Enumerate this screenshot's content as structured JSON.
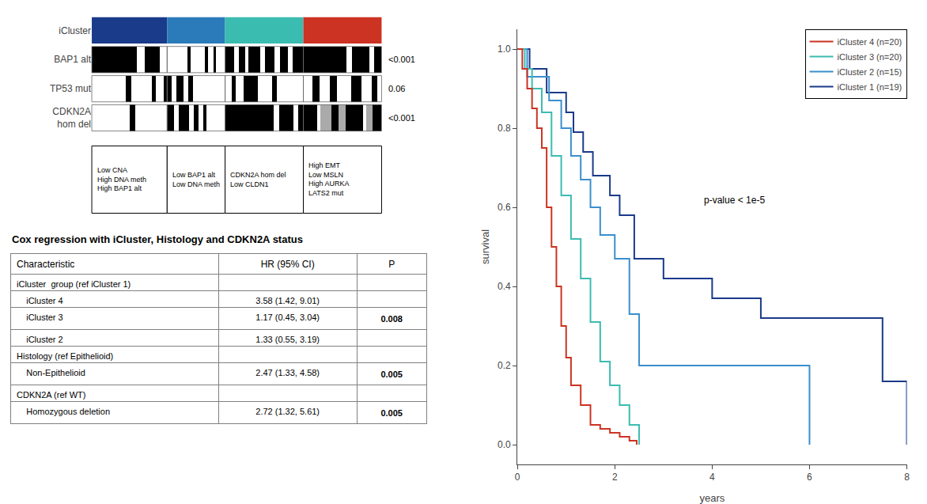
{
  "chart_data": [
    {
      "type": "heatmap",
      "categories": [
        "iCluster",
        "BAP1 alt",
        "TP53 mut",
        "CDKN2A\nhom del"
      ],
      "widths": [
        0.26,
        0.2,
        0.27,
        0.27
      ],
      "colors": [
        "#1a3a8a",
        "#2b7bba",
        "#3bbcb0",
        "#cc3322"
      ],
      "cells": [
        [
          [
            {
              "color": "black",
              "value": 0.6
            },
            {
              "color": "white",
              "value": 0.1
            },
            {
              "color": "black",
              "value": 0.2
            },
            {
              "color": "white",
              "value": 0.1
            }
          ],
          [
            {
              "color": "white",
              "value": 0.35
            },
            {
              "color": "black",
              "value": 0.05
            },
            {
              "color": "white",
              "value": 0.25
            },
            {
              "color": "black",
              "value": 0.05
            },
            {
              "color": "white",
              "value": 0.1
            },
            {
              "color": "black",
              "value": 0.04
            },
            {
              "color": "white",
              "value": 0.16
            }
          ],
          [
            {
              "color": "black",
              "value": 0.12
            },
            {
              "color": "white",
              "value": 0.06
            },
            {
              "color": "black",
              "value": 0.08
            },
            {
              "color": "white",
              "value": 0.04
            },
            {
              "color": "black",
              "value": 0.15
            },
            {
              "color": "white",
              "value": 0.06
            },
            {
              "color": "black",
              "value": 0.12
            },
            {
              "color": "white",
              "value": 0.07
            },
            {
              "color": "black",
              "value": 0.1
            },
            {
              "color": "white",
              "value": 0.06
            },
            {
              "color": "black",
              "value": 0.14
            }
          ],
          [
            {
              "color": "black",
              "value": 0.55
            },
            {
              "color": "white",
              "value": 0.07
            },
            {
              "color": "black",
              "value": 0.22
            },
            {
              "color": "white",
              "value": 0.06
            },
            {
              "color": "black",
              "value": 0.1
            }
          ]
        ],
        [
          [
            {
              "color": "white",
              "value": 0.45
            },
            {
              "color": "black",
              "value": 0.07
            },
            {
              "color": "white",
              "value": 0.28
            },
            {
              "color": "black",
              "value": 0.05
            },
            {
              "color": "white",
              "value": 0.1
            },
            {
              "color": "black",
              "value": 0.05
            }
          ],
          [
            {
              "color": "black",
              "value": 0.08
            },
            {
              "color": "white",
              "value": 0.08
            },
            {
              "color": "black",
              "value": 0.12
            },
            {
              "color": "white",
              "value": 0.08
            },
            {
              "color": "black",
              "value": 0.08
            },
            {
              "color": "white",
              "value": 0.56
            }
          ],
          [
            {
              "color": "white",
              "value": 0.08
            },
            {
              "color": "black",
              "value": 0.06
            },
            {
              "color": "white",
              "value": 0.1
            },
            {
              "color": "black",
              "value": 0.18
            },
            {
              "color": "white",
              "value": 0.18
            },
            {
              "color": "black",
              "value": 0.06
            },
            {
              "color": "white",
              "value": 0.34
            }
          ],
          [
            {
              "color": "white",
              "value": 0.12
            },
            {
              "color": "black",
              "value": 0.09
            },
            {
              "color": "white",
              "value": 0.13
            },
            {
              "color": "black",
              "value": 0.09
            },
            {
              "color": "white",
              "value": 0.18
            },
            {
              "color": "black",
              "value": 0.13
            },
            {
              "color": "white",
              "value": 0.13
            },
            {
              "color": "black",
              "value": 0.07
            },
            {
              "color": "white",
              "value": 0.06
            }
          ]
        ],
        [
          [
            {
              "color": "white",
              "value": 0.5
            },
            {
              "color": "black",
              "value": 0.08
            },
            {
              "color": "white",
              "value": 0.42
            }
          ],
          [
            {
              "color": "black",
              "value": 0.12
            },
            {
              "color": "white",
              "value": 0.08
            },
            {
              "color": "black",
              "value": 0.18
            },
            {
              "color": "white",
              "value": 0.08
            },
            {
              "color": "black",
              "value": 0.08
            },
            {
              "color": "white",
              "value": 0.08
            },
            {
              "color": "black",
              "value": 0.06
            },
            {
              "color": "white",
              "value": 0.32
            }
          ],
          [
            {
              "color": "black",
              "value": 0.62
            },
            {
              "color": "white",
              "value": 0.07
            },
            {
              "color": "black",
              "value": 0.18
            },
            {
              "color": "white",
              "value": 0.06
            },
            {
              "color": "black",
              "value": 0.07
            }
          ],
          [
            {
              "color": "black",
              "value": 0.18
            },
            {
              "color": "white",
              "value": 0.04
            },
            {
              "color": "#aaaaaa",
              "value": 0.14
            },
            {
              "color": "black",
              "value": 0.09
            },
            {
              "color": "#aaaaaa",
              "value": 0.09
            },
            {
              "color": "black",
              "value": 0.22
            },
            {
              "color": "white",
              "value": 0.04
            },
            {
              "color": "#aaaaaa",
              "value": 0.08
            },
            {
              "color": "black",
              "value": 0.12
            }
          ]
        ]
      ],
      "p_values": [
        null,
        "<0.001",
        "0.06",
        "<0.001"
      ],
      "annotations": [
        [
          "Low CNA",
          "High DNA meth",
          "High BAP1 alt"
        ],
        [
          "Low BAP1 alt",
          "Low DNA meth"
        ],
        [
          "CDKN2A hom del",
          "Low CLDN1"
        ],
        [
          "High EMT",
          "Low MSLN",
          "High AURKA",
          "LATS2 mut"
        ]
      ],
      "xlim": [
        0,
        1
      ],
      "tick_labels": "y",
      "grid": false
    },
    {
      "type": "table",
      "title": "Cox regression with iCluster, Histology and CDKN2A status",
      "headers": [
        "Characteristic",
        "HR (95% CI)",
        "P"
      ],
      "rows": [
        [
          "iCluster  group (ref iCluster 1)",
          null,
          null
        ],
        [
          "    iCluster 4",
          "3.58 (1.42, 9.01)",
          null
        ],
        [
          "    iCluster 3",
          "1.17 (0.45, 3.04)",
          "0.008"
        ],
        [
          "    iCluster 2",
          "1.33 (0.55, 3.19)",
          null
        ],
        [
          "Histology (ref Epithelioid)",
          null,
          null
        ],
        [
          "    Non-Epithelioid",
          "2.47 (1.33, 4.58)",
          "0.005"
        ],
        [
          "CDKN2A (ref WT)",
          null,
          null
        ],
        [
          "    Homozygous deletion",
          "2.72 (1.32, 5.61)",
          "0.005"
        ]
      ],
      "bold_values": [
        "0.008",
        "0.005"
      ]
    },
    {
      "type": "line",
      "line_style": "step",
      "xlabel": "years",
      "ylabel": "survival",
      "xlim": [
        0,
        8
      ],
      "ylim": [
        -0.05,
        1.05
      ],
      "xticks": [
        0,
        2,
        4,
        6,
        8
      ],
      "yticks": [
        {
          "value": 0.0,
          "label": "0.0"
        },
        0.2,
        0.4,
        0.6,
        0.8,
        {
          "value": 1.0,
          "label": "1.0"
        }
      ],
      "grid": false,
      "legend": "upper right",
      "annotations": [
        {
          "text": "p-value < 1e-5",
          "x": 3.8,
          "y": 0.6
        }
      ],
      "series": [
        {
          "name": "iCluster 1 (n=19)",
          "color": "#1a3a8a",
          "x": [
            0,
            0.25,
            0.4,
            0.6,
            0.75,
            1.0,
            1.15,
            1.35,
            1.55,
            1.75,
            1.9,
            2.1,
            2.4,
            2.7,
            3.0,
            3.5,
            4.0,
            5.0,
            5.5,
            6.0,
            7.0,
            7.5,
            8.0
          ],
          "values": [
            1.0,
            0.95,
            0.95,
            0.89,
            0.89,
            0.84,
            0.79,
            0.74,
            0.68,
            0.68,
            0.63,
            0.58,
            0.47,
            0.47,
            0.42,
            0.42,
            0.37,
            0.32,
            0.32,
            0.32,
            0.32,
            0.16,
            0.0
          ]
        },
        {
          "name": "iCluster 2 (n=15)",
          "color": "#3a8fcc",
          "x": [
            0,
            0.2,
            0.45,
            0.65,
            0.9,
            1.1,
            1.3,
            1.5,
            1.7,
            2.0,
            2.3,
            2.5,
            3.5,
            5.5,
            6.0
          ],
          "values": [
            1.0,
            0.93,
            0.93,
            0.87,
            0.8,
            0.73,
            0.67,
            0.6,
            0.53,
            0.47,
            0.33,
            0.2,
            0.2,
            0.2,
            0.0
          ]
        },
        {
          "name": "iCluster 3 (n=20)",
          "color": "#3bbcb0",
          "x": [
            0,
            0.15,
            0.3,
            0.5,
            0.7,
            0.9,
            1.1,
            1.3,
            1.5,
            1.7,
            1.9,
            2.1,
            2.3,
            2.5
          ],
          "values": [
            1.0,
            0.95,
            0.9,
            0.84,
            0.73,
            0.63,
            0.52,
            0.42,
            0.31,
            0.21,
            0.15,
            0.1,
            0.05,
            0.0
          ]
        },
        {
          "name": "iCluster 4 (n=20)",
          "color": "#cc3322",
          "x": [
            0,
            0.1,
            0.2,
            0.3,
            0.4,
            0.5,
            0.6,
            0.7,
            0.8,
            0.9,
            1.0,
            1.1,
            1.3,
            1.5,
            1.7,
            1.9,
            2.1,
            2.3,
            2.45
          ],
          "values": [
            1.0,
            0.95,
            0.9,
            0.85,
            0.8,
            0.75,
            0.6,
            0.5,
            0.4,
            0.3,
            0.22,
            0.15,
            0.1,
            0.05,
            0.04,
            0.03,
            0.02,
            0.01,
            0.0
          ]
        }
      ]
    }
  ]
}
